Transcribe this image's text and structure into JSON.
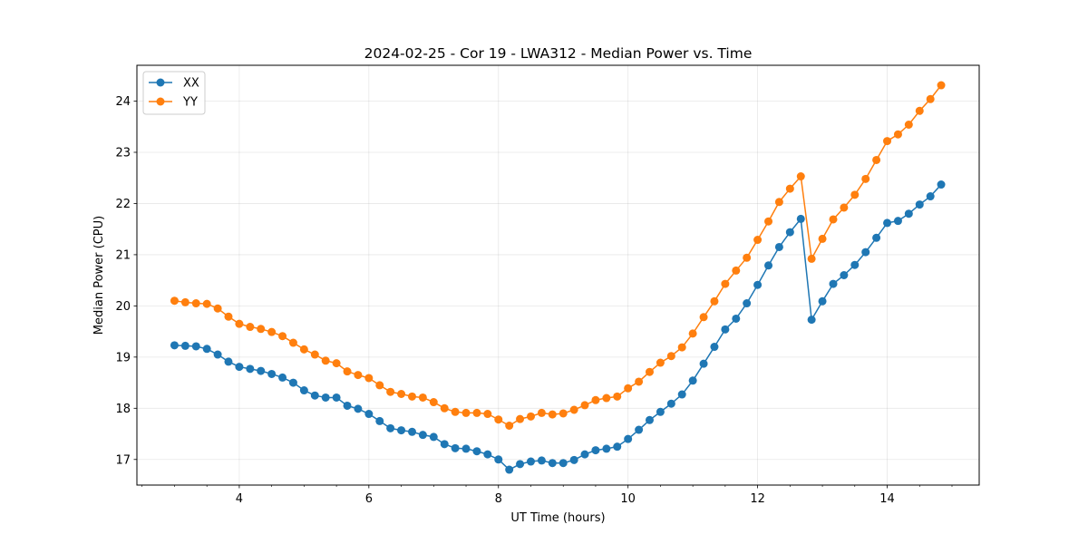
{
  "chart_data": {
    "type": "line",
    "title": "2024-02-25 - Cor 19 - LWA312 - Median Power vs. Time",
    "xlabel": "UT Time (hours)",
    "ylabel": "Median Power (CPU)",
    "xlim": [
      2.42,
      15.42
    ],
    "ylim": [
      16.5,
      24.7
    ],
    "xticks": [
      4,
      6,
      8,
      10,
      12,
      14
    ],
    "xtick_labels": [
      "4",
      "6",
      "8",
      "10",
      "12",
      "14"
    ],
    "yticks": [
      17,
      18,
      19,
      20,
      21,
      22,
      23,
      24
    ],
    "ytick_labels": [
      "17",
      "18",
      "19",
      "20",
      "21",
      "22",
      "23",
      "24"
    ],
    "grid": true,
    "legend_position": "top-left",
    "x": [
      3.0,
      3.167,
      3.333,
      3.5,
      3.667,
      3.833,
      4.0,
      4.167,
      4.333,
      4.5,
      4.667,
      4.833,
      5.0,
      5.167,
      5.333,
      5.5,
      5.667,
      5.833,
      6.0,
      6.167,
      6.333,
      6.5,
      6.667,
      6.833,
      7.0,
      7.167,
      7.333,
      7.5,
      7.667,
      7.833,
      8.0,
      8.167,
      8.333,
      8.5,
      8.667,
      8.833,
      9.0,
      9.167,
      9.333,
      9.5,
      9.667,
      9.833,
      10.0,
      10.167,
      10.333,
      10.5,
      10.667,
      10.833,
      11.0,
      11.167,
      11.333,
      11.5,
      11.667,
      11.833,
      12.0,
      12.167,
      12.333,
      12.5,
      12.667,
      12.833,
      13.0,
      13.167,
      13.333,
      13.5,
      13.667,
      13.833,
      14.0,
      14.167,
      14.333,
      14.5,
      14.667,
      14.833
    ],
    "series": [
      {
        "name": "XX",
        "color": "#1f77b4",
        "values": [
          19.23,
          19.22,
          19.21,
          19.16,
          19.05,
          18.91,
          18.81,
          18.77,
          18.73,
          18.67,
          18.6,
          18.5,
          18.35,
          18.25,
          18.21,
          18.21,
          18.05,
          17.99,
          17.89,
          17.75,
          17.61,
          17.57,
          17.54,
          17.48,
          17.44,
          17.3,
          17.22,
          17.21,
          17.16,
          17.1,
          17.0,
          16.8,
          16.91,
          16.96,
          16.98,
          16.93,
          16.93,
          16.99,
          17.1,
          17.18,
          17.21,
          17.25,
          17.4,
          17.58,
          17.77,
          17.93,
          18.09,
          18.27,
          18.54,
          18.87,
          19.2,
          19.54,
          19.75,
          20.05,
          20.41,
          20.79,
          21.15,
          21.44,
          21.7,
          19.73,
          20.09,
          20.43,
          20.6,
          20.8,
          21.05,
          21.33,
          21.62,
          21.66,
          21.8,
          21.98,
          22.14,
          22.37
        ]
      },
      {
        "name": "YY",
        "color": "#ff7f0e",
        "values": [
          20.1,
          20.07,
          20.05,
          20.04,
          19.95,
          19.79,
          19.65,
          19.59,
          19.55,
          19.49,
          19.41,
          19.28,
          19.15,
          19.05,
          18.93,
          18.88,
          18.72,
          18.65,
          18.59,
          18.45,
          18.32,
          18.28,
          18.23,
          18.21,
          18.12,
          18.0,
          17.93,
          17.91,
          17.91,
          17.89,
          17.78,
          17.66,
          17.79,
          17.84,
          17.91,
          17.88,
          17.9,
          17.97,
          18.06,
          18.16,
          18.2,
          18.23,
          18.39,
          18.52,
          18.71,
          18.89,
          19.02,
          19.19,
          19.46,
          19.78,
          20.09,
          20.43,
          20.69,
          20.94,
          21.29,
          21.65,
          22.03,
          22.29,
          22.53,
          20.92,
          21.31,
          21.69,
          21.92,
          22.17,
          22.48,
          22.85,
          23.22,
          23.35,
          23.54,
          23.81,
          24.04,
          24.31
        ]
      }
    ]
  }
}
